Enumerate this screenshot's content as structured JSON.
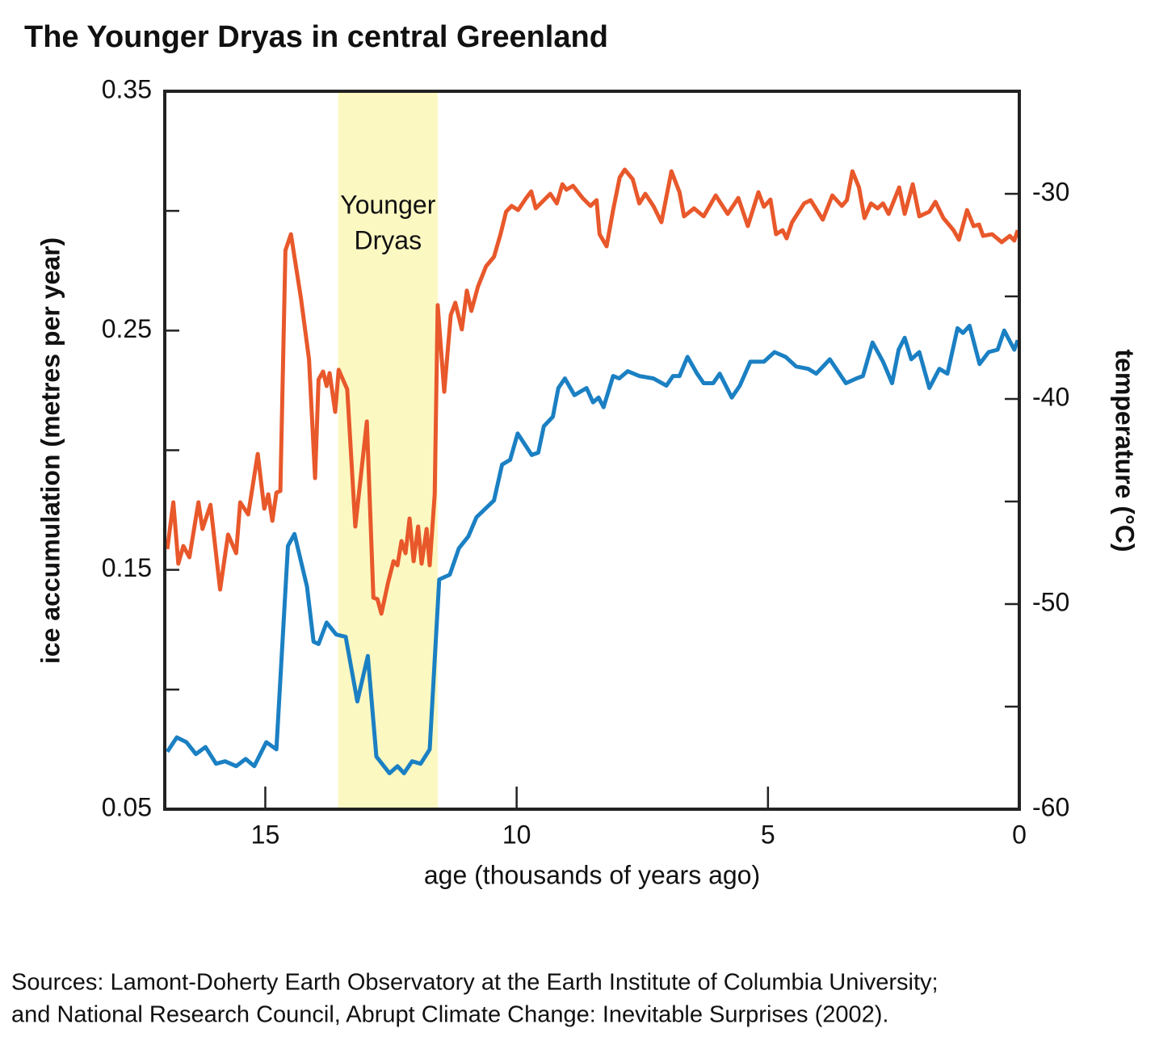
{
  "chart_data": {
    "type": "line",
    "title": "The Younger Dryas in central Greenland",
    "xlabel": "age (thousands of years ago)",
    "ylabel": "ice accumulation (metres per year)",
    "y2label": "temperature (°C)",
    "xlim": [
      17,
      0
    ],
    "xticks": [
      15,
      10,
      5,
      0
    ],
    "ylim": [
      0.05,
      0.35
    ],
    "yticks": [
      0.05,
      0.15,
      0.25,
      0.35
    ],
    "yminorticks": [
      0.1,
      0.2,
      0.3
    ],
    "y2lim": [
      -60,
      -25
    ],
    "y2ticks": [
      -60,
      -50,
      -40,
      -30
    ],
    "y2minorticks": [
      -55,
      -45,
      -35
    ],
    "highlight": {
      "xlim": [
        13.55,
        11.57
      ],
      "color": "#fcf8c2",
      "label_lines": [
        "Younger",
        "Dryas"
      ]
    },
    "series": [
      {
        "name": "ice accumulation",
        "color": "#1b80c3",
        "x": [
          16.95,
          16.76,
          16.57,
          16.38,
          16.19,
          15.98,
          15.8,
          15.58,
          15.39,
          15.22,
          14.98,
          14.78,
          14.55,
          14.42,
          14.17,
          14.04,
          13.94,
          13.78,
          13.59,
          13.4,
          13.17,
          12.96,
          12.79,
          12.53,
          12.37,
          12.24,
          12.08,
          11.91,
          11.73,
          11.54,
          11.33,
          11.15,
          10.96,
          10.8,
          10.45,
          10.29,
          10.13,
          9.98,
          9.7,
          9.57,
          9.46,
          9.28,
          9.17,
          9.04,
          8.85,
          8.61,
          8.48,
          8.37,
          8.27,
          8.08,
          7.96,
          7.79,
          7.56,
          7.28,
          7.02,
          6.89,
          6.76,
          6.6,
          6.41,
          6.28,
          6.09,
          5.96,
          5.72,
          5.56,
          5.35,
          5.08,
          4.87,
          4.65,
          4.44,
          4.2,
          4.04,
          3.77,
          3.45,
          3.24,
          3.11,
          2.92,
          2.71,
          2.53,
          2.4,
          2.28,
          2.15,
          1.99,
          1.79,
          1.59,
          1.43,
          1.23,
          1.12,
          0.99,
          0.79,
          0.61,
          0.43,
          0.3,
          0.1,
          0.03
        ],
        "values": [
          0.074,
          0.08,
          0.078,
          0.073,
          0.076,
          0.069,
          0.07,
          0.068,
          0.071,
          0.068,
          0.078,
          0.075,
          0.16,
          0.165,
          0.143,
          0.12,
          0.119,
          0.128,
          0.123,
          0.122,
          0.095,
          0.114,
          0.072,
          0.065,
          0.068,
          0.065,
          0.07,
          0.069,
          0.075,
          0.146,
          0.148,
          0.159,
          0.164,
          0.172,
          0.179,
          0.194,
          0.196,
          0.207,
          0.198,
          0.199,
          0.21,
          0.214,
          0.226,
          0.23,
          0.223,
          0.226,
          0.22,
          0.222,
          0.218,
          0.231,
          0.23,
          0.233,
          0.231,
          0.23,
          0.227,
          0.231,
          0.231,
          0.239,
          0.232,
          0.228,
          0.228,
          0.232,
          0.222,
          0.227,
          0.237,
          0.237,
          0.241,
          0.239,
          0.235,
          0.234,
          0.232,
          0.238,
          0.228,
          0.23,
          0.231,
          0.245,
          0.237,
          0.228,
          0.242,
          0.247,
          0.238,
          0.241,
          0.226,
          0.234,
          0.232,
          0.251,
          0.249,
          0.252,
          0.236,
          0.241,
          0.242,
          0.25,
          0.242,
          0.246
        ]
      },
      {
        "name": "temperature",
        "color": "#e8582b",
        "axis": "y2",
        "x": [
          16.95,
          16.83,
          16.73,
          16.63,
          16.51,
          16.33,
          16.25,
          16.09,
          15.9,
          15.74,
          15.58,
          15.5,
          15.34,
          15.15,
          15.02,
          14.94,
          14.86,
          14.78,
          14.7,
          14.6,
          14.49,
          14.29,
          14.13,
          14.01,
          13.94,
          13.85,
          13.78,
          13.72,
          13.61,
          13.54,
          13.37,
          13.21,
          12.98,
          12.85,
          12.77,
          12.69,
          12.56,
          12.45,
          12.37,
          12.29,
          12.21,
          12.13,
          12.05,
          11.96,
          11.89,
          11.79,
          11.73,
          11.63,
          11.57,
          11.44,
          11.31,
          11.22,
          11.09,
          10.99,
          10.9,
          10.77,
          10.61,
          10.45,
          10.32,
          10.21,
          10.1,
          9.97,
          9.81,
          9.71,
          9.62,
          9.49,
          9.33,
          9.2,
          9.09,
          9.01,
          8.88,
          8.69,
          8.53,
          8.41,
          8.35,
          8.21,
          8.08,
          7.95,
          7.85,
          7.69,
          7.56,
          7.44,
          7.28,
          7.12,
          6.92,
          6.76,
          6.67,
          6.47,
          6.28,
          6.04,
          5.8,
          5.59,
          5.4,
          5.19,
          5.08,
          4.95,
          4.84,
          4.71,
          4.63,
          4.52,
          4.28,
          4.15,
          3.91,
          3.72,
          3.53,
          3.43,
          3.32,
          3.19,
          3.08,
          2.95,
          2.82,
          2.71,
          2.6,
          2.39,
          2.28,
          2.12,
          1.99,
          1.79,
          1.67,
          1.51,
          1.31,
          1.2,
          1.04,
          0.91,
          0.8,
          0.72,
          0.54,
          0.35,
          0.19,
          0.1,
          0.03
        ],
        "values": [
          -47.32,
          -45.04,
          -48.03,
          -47.17,
          -47.72,
          -45.04,
          -46.34,
          -45.16,
          -49.29,
          -46.61,
          -47.52,
          -45.04,
          -45.63,
          -42.68,
          -45.35,
          -44.65,
          -45.94,
          -44.57,
          -44.49,
          -32.76,
          -31.97,
          -35.12,
          -38.07,
          -43.86,
          -39.06,
          -38.66,
          -39.37,
          -38.74,
          -40.63,
          -38.58,
          -39.53,
          -46.22,
          -41.1,
          -49.69,
          -49.76,
          -50.47,
          -48.98,
          -47.91,
          -48.11,
          -46.93,
          -47.52,
          -45.83,
          -47.91,
          -46.22,
          -48.03,
          -46.34,
          -48.11,
          -44.65,
          -35.43,
          -39.65,
          -35.91,
          -35.31,
          -36.61,
          -34.72,
          -35.71,
          -34.53,
          -33.54,
          -33.07,
          -31.97,
          -30.87,
          -30.59,
          -30.79,
          -30.2,
          -29.88,
          -30.71,
          -30.39,
          -30,
          -30.47,
          -29.53,
          -29.8,
          -29.61,
          -30.2,
          -30.59,
          -30.31,
          -31.97,
          -32.56,
          -30.79,
          -29.21,
          -28.82,
          -29.29,
          -30.47,
          -30,
          -30.59,
          -31.38,
          -28.9,
          -29.92,
          -31.1,
          -30.71,
          -31.1,
          -30.08,
          -30.98,
          -30.2,
          -31.57,
          -29.92,
          -30.63,
          -30.28,
          -31.97,
          -31.77,
          -32.17,
          -31.38,
          -30.47,
          -30.31,
          -31.26,
          -30.08,
          -30.59,
          -30.31,
          -28.9,
          -29.69,
          -31.18,
          -30.47,
          -30.71,
          -30.47,
          -30.98,
          -29.69,
          -30.98,
          -29.53,
          -31.1,
          -30.87,
          -30.39,
          -31.18,
          -31.77,
          -32.24,
          -30.79,
          -31.57,
          -31.5,
          -32.05,
          -31.97,
          -32.36,
          -32.05,
          -32.28,
          -31.77
        ]
      }
    ],
    "notes": [
      "Sources: Lamont-Doherty Earth Observatory at the Earth Institute of Columbia University;",
      "and National Research Council, Abrupt Climate Change: Inevitable Surprises (2002)."
    ]
  }
}
